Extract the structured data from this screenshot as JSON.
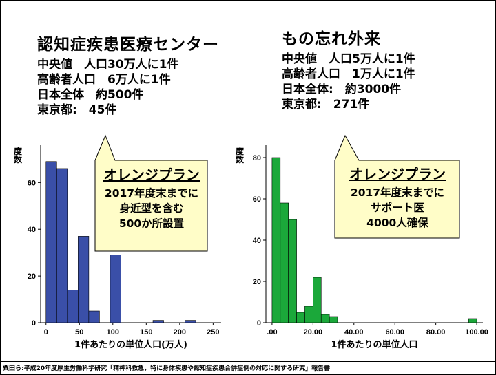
{
  "left_stats": {
    "heading": "認知症疾患医療センター",
    "lines": [
      "中央値　人口30万人に1件",
      "高齢者人口　6万人に1件",
      "日本全体　約500件",
      "東京都:　45件"
    ]
  },
  "right_stats": {
    "heading": "もの忘れ外来",
    "lines": [
      "中央値　人口5万人に1件",
      "高齢者人口　1万人に1件",
      "日本全体:　約3000件",
      "東京都:　271件"
    ]
  },
  "left_callout": {
    "title": "オレンジプラン",
    "lines": [
      "2017年度末までに",
      "身近型を含む",
      "500か所設置"
    ]
  },
  "right_callout": {
    "title": "オレンジプラン",
    "lines": [
      "2017年度末までに",
      "サポート医",
      "4000人確保"
    ]
  },
  "footer": "粟田ら:平成20年度厚生労働科学研究「精神科救急，特に身体疾患や認知症疾患合併症例の対応に関する研究」報告書",
  "chart_data": [
    {
      "type": "bar",
      "ylabel": "度数",
      "xlabel": "1件あたりの単位人口(万人)",
      "bin_width": 16,
      "x_bins": [
        0,
        16,
        32,
        48,
        64,
        80,
        96,
        112,
        128,
        144,
        160,
        176,
        192,
        208,
        224,
        240
      ],
      "values": [
        69,
        66,
        14,
        37,
        5,
        0,
        29,
        0,
        0,
        0,
        1,
        0,
        0,
        1,
        0,
        0
      ],
      "xlim": [
        -8,
        262
      ],
      "ylim": [
        0,
        76
      ],
      "xticks": [
        0,
        50,
        100,
        150,
        200,
        250
      ],
      "xtick_labels": [
        "0",
        "50",
        "100",
        "150",
        "200",
        "250"
      ],
      "yticks": [
        0,
        20,
        40,
        60
      ],
      "ytick_labels": [
        "0",
        "20",
        "40",
        "60"
      ],
      "color": "#3a4fa8"
    },
    {
      "type": "bar",
      "ylabel": "度数",
      "xlabel": "1件あたりの単位人口",
      "bin_width": 4,
      "x_bins": [
        0,
        4,
        8,
        12,
        16,
        20,
        24,
        28,
        32,
        36,
        40,
        44,
        48,
        52,
        56,
        60,
        64,
        68,
        72,
        76,
        80,
        84,
        88,
        92,
        96
      ],
      "values": [
        80,
        58,
        50,
        5,
        8,
        22,
        4,
        3,
        0,
        0,
        0,
        0,
        0,
        0,
        0,
        0,
        0,
        0,
        0,
        0,
        0,
        0,
        0,
        0,
        2
      ],
      "xlim": [
        -3,
        103
      ],
      "ylim": [
        0,
        86
      ],
      "xticks": [
        0,
        20,
        40,
        60,
        80,
        100
      ],
      "xtick_labels": [
        ".00",
        "20.00",
        "40.00",
        "60.00",
        "80.00",
        "100.00"
      ],
      "yticks": [
        0,
        20,
        40,
        60,
        80
      ],
      "ytick_labels": [
        "0",
        "20",
        "40",
        "60",
        "80"
      ],
      "color": "#1ba83a"
    }
  ]
}
